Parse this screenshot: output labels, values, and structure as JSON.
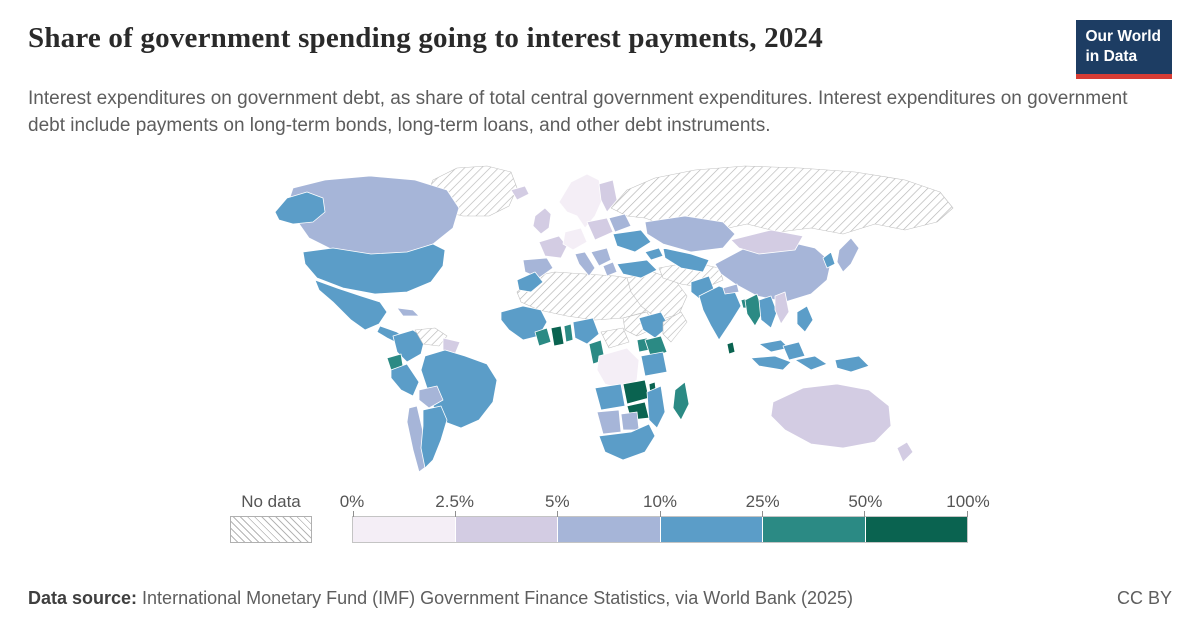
{
  "header": {
    "title": "Share of government spending going to interest payments, 2024",
    "subtitle": "Interest expenditures on government debt, as share of total central government expenditures. Interest expenditures on government debt include payments on long-term bonds, long-term loans, and other debt instruments.",
    "logo": {
      "line1": "Our World",
      "line2": "in Data",
      "background_color": "#1d3d63",
      "accent_color": "#d73c34"
    }
  },
  "legend": {
    "no_data_label": "No data",
    "hatch_color": "#b6b6b6",
    "tick_labels": [
      "0%",
      "2.5%",
      "5%",
      "10%",
      "25%",
      "50%",
      "100%"
    ],
    "bins": [
      {
        "range": "0-2.5%",
        "color": "#f4eef6"
      },
      {
        "range": "2.5-5%",
        "color": "#d3cce3"
      },
      {
        "range": "5-10%",
        "color": "#a6b5d8"
      },
      {
        "range": "10-25%",
        "color": "#5b9dc8"
      },
      {
        "range": "25-50%",
        "color": "#2b8a84"
      },
      {
        "range": "50-100%",
        "color": "#0a6350"
      }
    ]
  },
  "footer": {
    "source_label": "Data source:",
    "source_text": " International Monetary Fund (IMF) Government Finance Statistics, via World Bank (2025)",
    "license": "CC BY"
  },
  "chart_data": {
    "type": "choropleth",
    "title": "Share of government spending going to interest payments, 2024",
    "year": 2024,
    "metric": "Interest expenditures on government debt as share of total central government expenditures",
    "unit": "%",
    "scale_thresholds": [
      0,
      2.5,
      5,
      10,
      25,
      50,
      100
    ],
    "legend_position": "bottom",
    "no_data_style": "diagonal-hatch",
    "regions": [
      {
        "id": "alaska",
        "name": "United States (Alaska)",
        "bin": 4
      },
      {
        "id": "canada",
        "name": "Canada",
        "bin": 3
      },
      {
        "id": "greenland",
        "name": "Greenland",
        "bin": 0
      },
      {
        "id": "usa",
        "name": "United States",
        "bin": 4
      },
      {
        "id": "mexico",
        "name": "Mexico",
        "bin": 4
      },
      {
        "id": "central-america",
        "name": "Central America",
        "bin": 4
      },
      {
        "id": "cuba",
        "name": "Cuba",
        "bin": 3
      },
      {
        "id": "colombia",
        "name": "Colombia",
        "bin": 4
      },
      {
        "id": "venezuela",
        "name": "Venezuela",
        "bin": 0
      },
      {
        "id": "guianas",
        "name": "Guyana & Suriname",
        "bin": 2
      },
      {
        "id": "brazil",
        "name": "Brazil",
        "bin": 4
      },
      {
        "id": "ecuador",
        "name": "Ecuador",
        "bin": 5
      },
      {
        "id": "peru",
        "name": "Peru",
        "bin": 4
      },
      {
        "id": "bolivia",
        "name": "Bolivia",
        "bin": 3
      },
      {
        "id": "chile",
        "name": "Chile",
        "bin": 3
      },
      {
        "id": "argentina",
        "name": "Argentina",
        "bin": 4
      },
      {
        "id": "iceland",
        "name": "Iceland",
        "bin": 2
      },
      {
        "id": "uk",
        "name": "United Kingdom & Ireland",
        "bin": 2
      },
      {
        "id": "scandinavia",
        "name": "Norway & Sweden",
        "bin": 1
      },
      {
        "id": "finland",
        "name": "Finland",
        "bin": 2
      },
      {
        "id": "france",
        "name": "France",
        "bin": 2
      },
      {
        "id": "iberia",
        "name": "Spain & Portugal",
        "bin": 3
      },
      {
        "id": "germany",
        "name": "Germany & Central Europe",
        "bin": 1
      },
      {
        "id": "italy",
        "name": "Italy",
        "bin": 3
      },
      {
        "id": "poland",
        "name": "Poland & Baltics",
        "bin": 2
      },
      {
        "id": "belarus",
        "name": "Belarus",
        "bin": 3
      },
      {
        "id": "ukraine",
        "name": "Ukraine",
        "bin": 4
      },
      {
        "id": "balkans",
        "name": "Balkans",
        "bin": 3
      },
      {
        "id": "greece",
        "name": "Greece",
        "bin": 3
      },
      {
        "id": "turkey",
        "name": "Turkey",
        "bin": 4
      },
      {
        "id": "russia",
        "name": "Russia",
        "bin": 0
      },
      {
        "id": "kazakhstan",
        "name": "Kazakhstan",
        "bin": 3
      },
      {
        "id": "central-asia",
        "name": "Uzbekistan & Turkmenistan",
        "bin": 4
      },
      {
        "id": "caucasus",
        "name": "Caucasus",
        "bin": 4
      },
      {
        "id": "middle-east",
        "name": "Arabian Peninsula & Levant",
        "bin": 0
      },
      {
        "id": "iran-afghanistan",
        "name": "Iran & Afghanistan",
        "bin": 0
      },
      {
        "id": "pakistan",
        "name": "Pakistan",
        "bin": 4
      },
      {
        "id": "india",
        "name": "India",
        "bin": 4
      },
      {
        "id": "nepal",
        "name": "Nepal",
        "bin": 3
      },
      {
        "id": "bangladesh",
        "name": "Bangladesh",
        "bin": 5
      },
      {
        "id": "sri-lanka",
        "name": "Sri Lanka",
        "bin": 6
      },
      {
        "id": "china",
        "name": "China",
        "bin": 3
      },
      {
        "id": "mongolia",
        "name": "Mongolia",
        "bin": 2
      },
      {
        "id": "japan",
        "name": "Japan",
        "bin": 3
      },
      {
        "id": "korea",
        "name": "South Korea",
        "bin": 4
      },
      {
        "id": "myanmar",
        "name": "Myanmar",
        "bin": 5
      },
      {
        "id": "thailand",
        "name": "Thailand & Laos",
        "bin": 4
      },
      {
        "id": "vietnam",
        "name": "Vietnam",
        "bin": 2
      },
      {
        "id": "malaysia",
        "name": "Malaysia",
        "bin": 4
      },
      {
        "id": "borneo",
        "name": "Borneo (Indonesia/Malaysia)",
        "bin": 4
      },
      {
        "id": "indonesia-west",
        "name": "Indonesia (Sumatra-Java)",
        "bin": 4
      },
      {
        "id": "indonesia-east",
        "name": "Indonesia (Sulawesi-Maluku)",
        "bin": 4
      },
      {
        "id": "philippines",
        "name": "Philippines",
        "bin": 4
      },
      {
        "id": "png",
        "name": "Papua New Guinea",
        "bin": 4
      },
      {
        "id": "australia",
        "name": "Australia",
        "bin": 2
      },
      {
        "id": "new-zealand",
        "name": "New Zealand",
        "bin": 2
      },
      {
        "id": "morocco",
        "name": "Morocco",
        "bin": 4
      },
      {
        "id": "north-africa",
        "name": "North Africa & Sahel",
        "bin": 0
      },
      {
        "id": "sudan",
        "name": "Sudan",
        "bin": 0
      },
      {
        "id": "west-africa",
        "name": "West Africa (Senegal-Guinea)",
        "bin": 4
      },
      {
        "id": "cote-divoire",
        "name": "Cote d'Ivoire",
        "bin": 5
      },
      {
        "id": "ghana",
        "name": "Ghana",
        "bin": 6
      },
      {
        "id": "togo-benin",
        "name": "Togo & Benin",
        "bin": 5
      },
      {
        "id": "nigeria",
        "name": "Nigeria",
        "bin": 4
      },
      {
        "id": "cameroon",
        "name": "Cameroon & Gabon",
        "bin": 5
      },
      {
        "id": "car",
        "name": "Central African Republic",
        "bin": 0
      },
      {
        "id": "drc",
        "name": "Democratic Republic of Congo",
        "bin": 1
      },
      {
        "id": "ethiopia",
        "name": "Ethiopia",
        "bin": 4
      },
      {
        "id": "somalia",
        "name": "Somalia",
        "bin": 0
      },
      {
        "id": "uganda",
        "name": "Uganda",
        "bin": 5
      },
      {
        "id": "kenya",
        "name": "Kenya",
        "bin": 5
      },
      {
        "id": "tanzania",
        "name": "Tanzania",
        "bin": 4
      },
      {
        "id": "angola",
        "name": "Angola",
        "bin": 4
      },
      {
        "id": "zambia",
        "name": "Zambia",
        "bin": 6
      },
      {
        "id": "malawi",
        "name": "Malawi",
        "bin": 6
      },
      {
        "id": "zimbabwe",
        "name": "Zimbabwe",
        "bin": 6
      },
      {
        "id": "mozambique",
        "name": "Mozambique",
        "bin": 4
      },
      {
        "id": "madagascar",
        "name": "Madagascar",
        "bin": 5
      },
      {
        "id": "namibia",
        "name": "Namibia",
        "bin": 3
      },
      {
        "id": "botswana",
        "name": "Botswana",
        "bin": 3
      },
      {
        "id": "south-africa",
        "name": "South Africa",
        "bin": 4
      }
    ]
  }
}
